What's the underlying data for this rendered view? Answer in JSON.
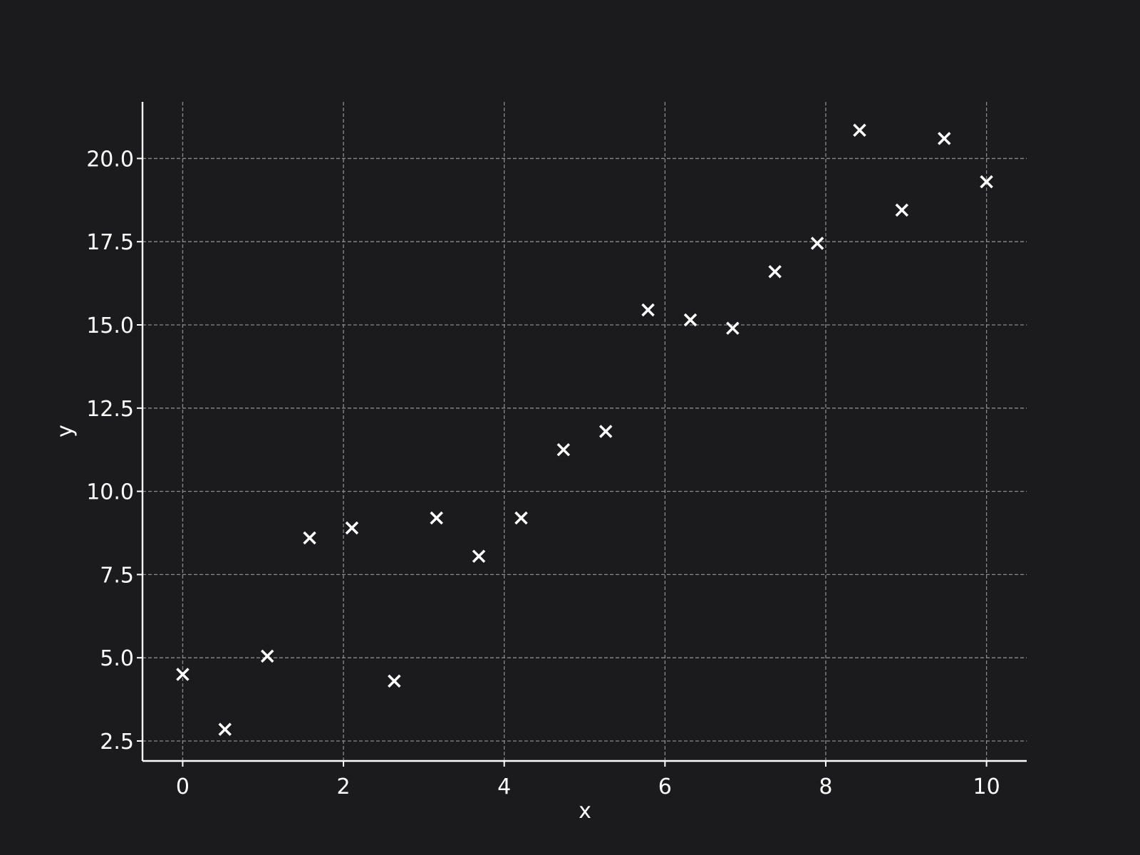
{
  "chart_data": {
    "type": "scatter",
    "title": "",
    "xlabel": "x",
    "ylabel": "y",
    "xlim": [
      -0.5,
      10.5
    ],
    "ylim": [
      1.9,
      21.7
    ],
    "grid": true,
    "marker": "x",
    "x_ticks": [
      0,
      2,
      4,
      6,
      8,
      10
    ],
    "x_tick_labels": [
      "0",
      "2",
      "4",
      "6",
      "8",
      "10"
    ],
    "y_ticks": [
      2.5,
      5.0,
      7.5,
      10.0,
      12.5,
      15.0,
      17.5,
      20.0
    ],
    "y_tick_labels": [
      "2.5",
      "5.0",
      "7.5",
      "10.0",
      "12.5",
      "15.0",
      "17.5",
      "20.0"
    ],
    "series": [
      {
        "x": [
          0.0,
          0.526,
          1.053,
          1.579,
          2.105,
          2.632,
          3.158,
          3.684,
          4.211,
          4.737,
          5.263,
          5.789,
          6.316,
          6.842,
          7.368,
          7.895,
          8.421,
          8.947,
          9.474,
          10.0
        ],
        "y": [
          4.5,
          2.85,
          5.05,
          8.6,
          8.9,
          4.3,
          9.2,
          8.05,
          9.2,
          11.25,
          11.8,
          15.45,
          15.15,
          14.9,
          16.6,
          17.45,
          20.85,
          18.45,
          20.6,
          19.3
        ]
      }
    ],
    "colors": {
      "background": "#1b1b1d",
      "axis": "#ffffff",
      "grid": "#8a8a8a",
      "marker": "#ffffff"
    }
  }
}
